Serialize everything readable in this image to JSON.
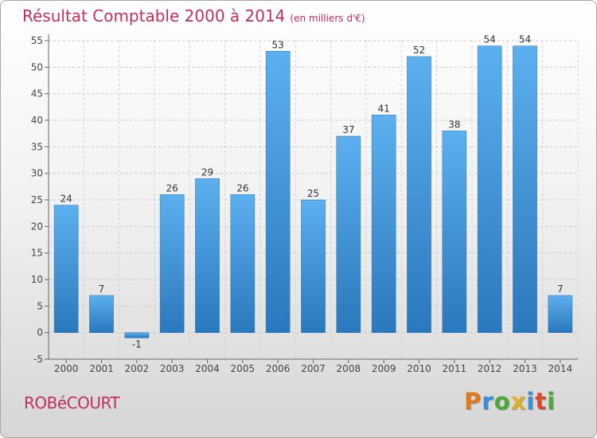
{
  "chart_data": {
    "type": "bar",
    "title": "Résultat Comptable 2000 à 2014",
    "subtitle": "(en milliers d'€)",
    "categories": [
      "2000",
      "2001",
      "2002",
      "2003",
      "2004",
      "2005",
      "2006",
      "2007",
      "2008",
      "2009",
      "2010",
      "2011",
      "2012",
      "2013",
      "2014"
    ],
    "values": [
      24,
      7,
      -1,
      26,
      29,
      26,
      53,
      25,
      37,
      41,
      52,
      38,
      54,
      54,
      7
    ],
    "ylim": [
      -5,
      55
    ],
    "yticks": [
      -5,
      0,
      5,
      10,
      15,
      20,
      25,
      30,
      35,
      40,
      45,
      50,
      55
    ],
    "grid": true,
    "bar_color": "#3d8fd6"
  },
  "footer": {
    "commune": "ROBéCOURT",
    "logo": [
      "P",
      "r",
      "o",
      "x",
      "i",
      "t",
      "i"
    ],
    "logo_colors": [
      "#e07a1f",
      "#3a8fd8",
      "#4aaa3a",
      "#e0b020",
      "#3a8fd8",
      "#d94a2a",
      "#4aaa3a"
    ]
  }
}
